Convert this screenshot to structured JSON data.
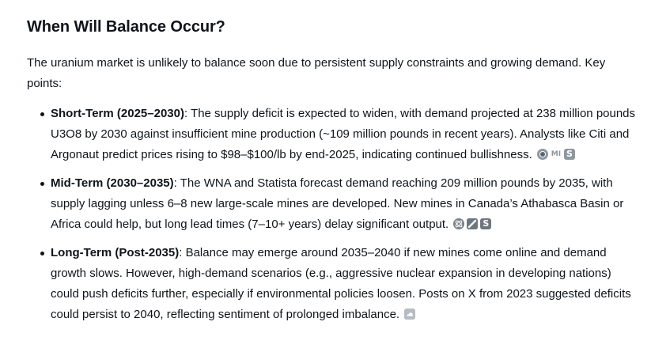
{
  "heading": "When Will Balance Occur?",
  "intro": "The uranium market is unlikely to balance soon due to persistent supply constraints and growing demand. Key points:",
  "points": [
    {
      "title": "Short-Term (2025–2030)",
      "text": ": The supply deficit is expected to widen, with demand projected at 238 million pounds U3O8 by 2030 against insufficient mine production (~109 million pounds in recent years). Analysts like Citi and Argonaut predict prices rising to $98–$100/lb by end-2025, indicating continued bullishness.",
      "sources": [
        "globe-icon",
        "mining-news-icon",
        "sprott-icon"
      ]
    },
    {
      "title": "Mid-Term (2030–2035)",
      "text": ": The WNA and Statista forecast demand reaching 209 million pounds by 2035, with supply lagging unless 6–8 new large-scale mines are developed. New mines in Canada’s Athabasca Basin or Africa could help, but long lead times (7–10+ years) delay significant output.",
      "sources": [
        "atom-icon",
        "slash-icon",
        "sprott-icon"
      ]
    },
    {
      "title": "Long-Term (Post-2035)",
      "text": ": Balance may emerge around 2035–2040 if new mines come online and demand growth slows. However, high-demand scenarios (e.g., aggressive nuclear expansion in developing nations) could push deficits further, especially if environmental policies loosen. Posts on X from 2023 suggested deficits could persist to 2040, reflecting sentiment of prolonged imbalance.",
      "sources": [
        "x-post-icon"
      ]
    }
  ],
  "source_glyphs": {
    "mi": "MI",
    "s": "S"
  }
}
